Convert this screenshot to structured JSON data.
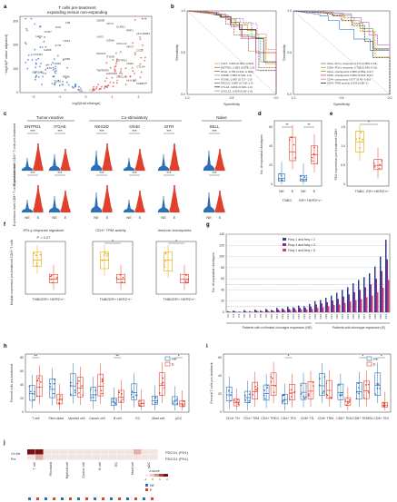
{
  "panels": [
    "a",
    "b",
    "c",
    "d",
    "e",
    "f",
    "g",
    "h",
    "i",
    "j"
  ],
  "a": {
    "title1": "T cells pre-treatment",
    "title2": "expanding versus non-expanding",
    "xlabel": "log2(fold change)",
    "ylabel": "−log10(P value adjusted)",
    "xticks": [
      "−2",
      "−1",
      "0",
      "1",
      "2"
    ],
    "yticks": [
      "0",
      "100",
      "200",
      "300"
    ],
    "genes_left": [
      "LTB",
      "FOS",
      "CCR7",
      "LEF1",
      "CD44",
      "IL7R",
      "GZMK",
      "CXCR4",
      "CD69",
      "CD52",
      "JUN",
      "GPR183",
      "PERK",
      "TOB1"
    ],
    "genes_right": [
      "GZMB",
      "CD74",
      "KLRG1",
      "PRF1",
      "HLA-DRB1",
      "LAG3",
      "GZMA",
      "CXCL13",
      "NKG7",
      "CCL5",
      "PDCD1",
      "ITGAE",
      "ENTPD1",
      "CD8A",
      "CTLA4",
      "TNFRSF9",
      "HAVCR2",
      "CXCL13",
      "HLA-DR",
      "FABP5"
    ]
  },
  "b": {
    "xlabel": "Specificity",
    "ylabel": "Sensitivity",
    "ticks": [
      "0.0",
      "0.5",
      "1.0"
    ],
    "legend_left": [
      {
        "name": "TCF7, 0.803 (0.567−0.915)",
        "color": "#e8a400"
      },
      {
        "name": "ENTPD1, 0.853 (0.678−1.0)",
        "color": "#4a8cc4"
      },
      {
        "name": "IFNG, 0.756 (0.541−0.900)",
        "color": "#d94b3a"
      },
      {
        "name": "GZMB, 0.839 (0.626−1.0)",
        "color": "#6cb26c"
      },
      {
        "name": "ITGAE, 0.887 (0.717−1.0)",
        "color": "#c77cd5"
      },
      {
        "name": "PDCD1, 0.887 (0.718−1.0)",
        "color": "#8a6a3c"
      },
      {
        "name": "CTLA4, 0.839 (0.646−1.0)",
        "color": "#333333"
      },
      {
        "name": "CXCL13, 0.909 (0.83−1.0)",
        "color": "#e06fa0"
      }
    ],
    "legend_right": [
      {
        "name": "CD4+ IFN-γ response 0.774 (0.565−0.91)",
        "color": "#4a8cc4"
      },
      {
        "name": "CD8+ IFN-γ response 0.758 (0.540−0.91)",
        "color": "#e8a400"
      },
      {
        "name": "CD4+ checkpoints 0.806 (0.563−0.97)",
        "color": "#6cb26c"
      },
      {
        "name": "CD8+ checkpoints 0.806 (0.633−0.97)",
        "color": "#d94b3a"
      },
      {
        "name": "CD4+ cytotoxicity 0.677 (0.45−0.90)",
        "color": "#c77cd5"
      },
      {
        "name": "CD4+ TRM activity 0.935 (0.80−1)",
        "color": "#333333"
      }
    ]
  },
  "c": {
    "groups": [
      "Tumor-reactive",
      "Co-stimulatory",
      "Naive"
    ],
    "genes": [
      "ENTPD1",
      "ITGAE",
      "NKG2D",
      "OX40",
      "GITR",
      "SELL"
    ],
    "row1_ylabel": "Expression level CD4+ T cells pre-treatment",
    "row2_ylabel": "Expression level CD8+ T cells pre-treatment",
    "xcats": [
      "NE",
      "E"
    ],
    "sig_row1": [
      "***",
      "***",
      "***",
      "***",
      "***",
      "***"
    ],
    "sig_row2": [
      "***",
      "***",
      "***",
      "***",
      "***",
      "***"
    ]
  },
  "d": {
    "ylabel": "No. of expanded clonotypes",
    "yticks": [
      "0",
      "20",
      "40",
      "60"
    ],
    "groups": [
      "TNBC",
      "ER+ HER2+/−"
    ],
    "xcats": [
      "NE",
      "E",
      "NE",
      "E"
    ],
    "sig": [
      "**",
      "**"
    ]
  },
  "e": {
    "ylabel": "PD1 expression pre-treatment CD8+",
    "yticks": [
      "0",
      "0.5",
      "1.0",
      "1.5"
    ],
    "xcats": [
      "TNBC",
      "ER+ HER2+/−"
    ],
    "sig": "*"
  },
  "f": {
    "titles": [
      "IFN-γ response signature",
      "CD4+ TRM activity",
      "Immune checkpoints"
    ],
    "pvalue": "P = 0.07",
    "ylabel": "Module expression pre-treatment CD4+ T cells",
    "xcats": [
      "TNBC",
      "ER+ HER2+/−"
    ],
    "sig": [
      "",
      "*",
      "*"
    ]
  },
  "g": {
    "ylabel": "No. of expanded clonotypes",
    "yticks": [
      "0",
      "20",
      "40",
      "60",
      "80",
      "100",
      "120",
      "140"
    ],
    "legend": [
      {
        "name": "Freq 1 and freq > 2",
        "color": "#2c3e8c"
      },
      {
        "name": "Prop 1 and freq > 2",
        "color": "#8e2c8e"
      },
      {
        "name": "Freq 1 and freq > 5",
        "color": "#d4407a"
      }
    ],
    "patients": [
      "P2",
      "P3",
      "P4",
      "P5",
      "P6",
      "P7",
      "P8",
      "P9",
      "P10",
      "P11",
      "P12",
      "P13",
      "P14",
      "P15",
      "P16",
      "P17",
      "P18",
      "P19",
      "P20",
      "P21",
      "P22",
      "P23",
      "P24",
      "P25",
      "P26",
      "P27",
      "P28",
      "P29",
      "P30",
      "P31"
    ],
    "group1": "Patients with no/limited clonotype expansion (NE)",
    "group2": "Patients with clonotype expansion (E)",
    "values": [
      [
        2,
        1,
        1
      ],
      [
        3,
        2,
        1
      ],
      [
        1,
        1,
        0
      ],
      [
        4,
        2,
        1
      ],
      [
        2,
        1,
        1
      ],
      [
        5,
        3,
        2
      ],
      [
        3,
        2,
        1
      ],
      [
        6,
        4,
        2
      ],
      [
        4,
        3,
        2
      ],
      [
        8,
        5,
        3
      ],
      [
        7,
        5,
        3
      ],
      [
        10,
        6,
        4
      ],
      [
        9,
        7,
        4
      ],
      [
        12,
        8,
        5
      ],
      [
        11,
        8,
        5
      ],
      [
        15,
        10,
        6
      ],
      [
        20,
        14,
        8
      ],
      [
        22,
        16,
        9
      ],
      [
        26,
        18,
        11
      ],
      [
        30,
        21,
        13
      ],
      [
        35,
        24,
        14
      ],
      [
        40,
        28,
        17
      ],
      [
        45,
        32,
        19
      ],
      [
        52,
        36,
        22
      ],
      [
        58,
        40,
        24
      ],
      [
        63,
        45,
        27
      ],
      [
        70,
        50,
        30
      ],
      [
        82,
        60,
        36
      ],
      [
        100,
        74,
        44
      ],
      [
        130,
        95,
        58
      ]
    ]
  },
  "h": {
    "ylabel": "Percent cells pre-treatment",
    "yticks": [
      "0",
      "20",
      "40",
      "60",
      "80"
    ],
    "categories": [
      "T cell",
      "Fibro-blast",
      "Myeloid cell",
      "Cancer cell",
      "B cell",
      "EC",
      "Mast cell",
      "pDC"
    ],
    "legend": [
      {
        "name": "NE",
        "color": "#2c6fb5"
      },
      {
        "name": "E",
        "color": "#e0402e"
      }
    ],
    "sig": [
      "**",
      "",
      "",
      "",
      "**",
      "",
      "",
      "*"
    ]
  },
  "j": {
    "ylabel": "Percent T cells pre-treatment",
    "yticks": [
      "0",
      "20",
      "40",
      "60"
    ],
    "categories": [
      "CD4+ TN",
      "CD4+ TEM",
      "CD4+ TREG",
      "CD4+ TEX",
      "CD8+ TN",
      "CD8+ TRM",
      "CD8+ TEM",
      "CD8+ TEMRA",
      "CD8+ TEX"
    ],
    "legend": [
      {
        "name": "NE",
        "color": "#2c6fb5"
      },
      {
        "name": "E",
        "color": "#e0402e"
      }
    ],
    "sig": [
      "",
      "",
      "",
      "*",
      "",
      "",
      "",
      "*",
      "*"
    ]
  },
  "i": {
    "rows_top": [
      "On the",
      "Pre"
    ],
    "row_labels": [
      "T cell",
      "Fibroblast",
      "Myeloid cell",
      "Cancer cell",
      "B cell",
      "EC",
      "Mast cell",
      "pDC"
    ],
    "genes": [
      "PDCD1 (PD1)",
      "PDCD1 (PD1)"
    ],
    "legend_title": "z-score",
    "legend_ticks": [
      "-1",
      "0",
      "1",
      "2"
    ],
    "cats": [
      {
        "name": "NE",
        "color": "#2c6fb5"
      },
      {
        "name": "E",
        "color": "#e0402e"
      }
    ]
  }
}
